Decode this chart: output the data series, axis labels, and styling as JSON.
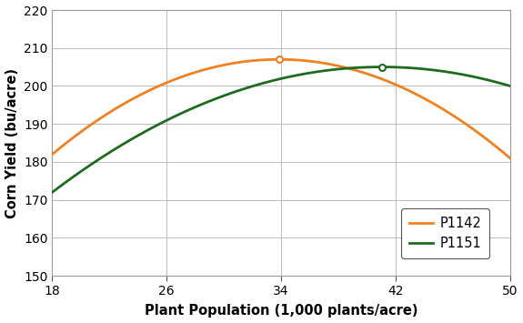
{
  "title": "",
  "xlabel": "Plant Population (1,000 plants/acre)",
  "ylabel": "Corn Yield (bu/acre)",
  "xlim": [
    18,
    50
  ],
  "ylim": [
    150,
    220
  ],
  "xticks": [
    18,
    26,
    34,
    42,
    50
  ],
  "yticks": [
    150,
    160,
    170,
    180,
    190,
    200,
    210,
    220
  ],
  "series": [
    {
      "label": "P1142",
      "color": "#F08020",
      "peak_x": 34,
      "peak_y": 207,
      "left_x": 18,
      "left_y": 182,
      "right_x": 50,
      "right_y": 181
    },
    {
      "label": "P1151",
      "color": "#1E6B20",
      "peak_x": 41.5,
      "peak_y": 205,
      "left_x": 18,
      "left_y": 172,
      "right_x": 50,
      "right_y": 200
    }
  ],
  "background_color": "#ffffff",
  "grid_color": "#bbbbbb",
  "figsize": [
    5.75,
    3.55
  ],
  "dpi": 100
}
